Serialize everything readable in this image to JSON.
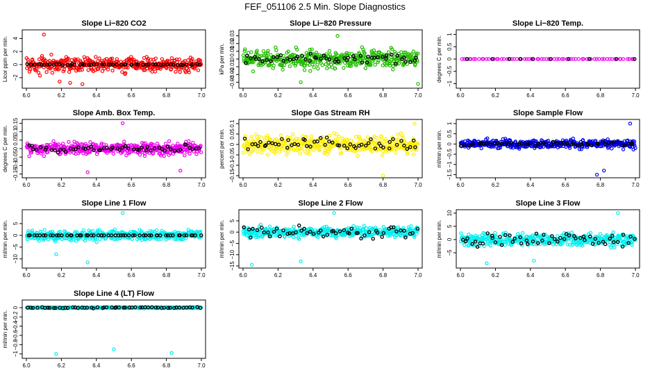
{
  "figure_title": "FEF_051106  2.5 Min. Slope Diagnostics",
  "chart_data": [
    {
      "id": "co2",
      "type": "scatter",
      "title": "Slope Li−820 CO2",
      "ylabel": "Licor ppm per min.",
      "xlim": [
        6.0,
        7.0
      ],
      "ylim": [
        -3.3,
        5.0
      ],
      "yticks": [
        -2,
        0,
        2,
        4
      ],
      "xticks": [
        6.0,
        6.2,
        6.4,
        6.6,
        6.8,
        7.0
      ],
      "color": "#ff0000",
      "spread": 1.1,
      "overlay_spread": 0.08,
      "outliers": [
        [
          6.1,
          4.6
        ],
        [
          6.32,
          -3.0
        ],
        [
          6.19,
          -2.6
        ],
        [
          6.25,
          -2.8
        ]
      ],
      "series": [
        {
          "name": "slope",
          "color": "#ff0000"
        },
        {
          "name": "reference",
          "color": "#000000"
        }
      ]
    },
    {
      "id": "pressure",
      "type": "scatter",
      "title": "Slope Li−820 Pressure",
      "ylabel": "kPa per min.",
      "xlim": [
        6.0,
        7.0
      ],
      "ylim": [
        -0.035,
        0.035
      ],
      "yticks": [
        -0.03,
        -0.02,
        -0.01,
        0.0,
        0.01,
        0.02,
        0.03
      ],
      "xticks": [
        6.0,
        6.2,
        6.4,
        6.6,
        6.8,
        7.0
      ],
      "color": "#22bb00",
      "spread": 0.011,
      "overlay_spread": 0.007,
      "outliers": [
        [
          6.54,
          0.03
        ],
        [
          6.33,
          -0.03
        ],
        [
          7.0,
          -0.032
        ]
      ],
      "series": [
        {
          "name": "slope",
          "color": "#22bb00"
        },
        {
          "name": "reference",
          "color": "#000000"
        }
      ]
    },
    {
      "id": "temp",
      "type": "scatter",
      "title": "Slope Li−820 Temp.",
      "ylabel": "degrees C per min.",
      "xlim": [
        6.0,
        7.0
      ],
      "ylim": [
        -1.1,
        1.1
      ],
      "yticks": [
        -1.0,
        -0.5,
        0.0,
        0.5,
        1.0
      ],
      "xticks": [
        6.0,
        6.2,
        6.4,
        6.6,
        6.8,
        7.0
      ],
      "color": "#ee00ee",
      "spread": 0.0,
      "overlay_spread": 0.0,
      "outliers": [],
      "series": [
        {
          "name": "slope",
          "color": "#ee00ee"
        },
        {
          "name": "reference",
          "color": "#000000"
        }
      ]
    },
    {
      "id": "box",
      "type": "scatter",
      "title": "Slope Amb. Box Temp.",
      "ylabel": "degrees C per min.",
      "xlim": [
        6.0,
        7.0
      ],
      "ylim": [
        -0.16,
        0.16
      ],
      "yticks": [
        -0.15,
        -0.1,
        -0.05,
        0.0,
        0.05,
        0.1,
        0.15
      ],
      "xticks": [
        6.0,
        6.2,
        6.4,
        6.6,
        6.8,
        7.0
      ],
      "color": "#ee00ee",
      "spread": 0.035,
      "overlay_spread": 0.02,
      "outliers": [
        [
          6.55,
          0.15
        ],
        [
          6.35,
          -0.14
        ],
        [
          6.88,
          -0.13
        ]
      ],
      "series": [
        {
          "name": "slope",
          "color": "#ee00ee"
        },
        {
          "name": "reference",
          "color": "#000000"
        }
      ]
    },
    {
      "id": "rh",
      "type": "scatter",
      "title": "Slope Gas Stream RH",
      "ylabel": "percent per min.",
      "xlim": [
        6.0,
        7.0
      ],
      "ylim": [
        -0.15,
        0.11
      ],
      "yticks": [
        -0.15,
        -0.1,
        -0.05,
        0.0,
        0.05,
        0.1
      ],
      "xticks": [
        6.0,
        6.2,
        6.4,
        6.6,
        6.8,
        7.0
      ],
      "color": "#ffee00",
      "spread": 0.04,
      "overlay_spread": 0.03,
      "outliers": [
        [
          6.8,
          -0.15
        ],
        [
          6.98,
          0.1
        ]
      ],
      "series": [
        {
          "name": "slope",
          "color": "#ffee00"
        },
        {
          "name": "reference",
          "color": "#000000"
        }
      ]
    },
    {
      "id": "flow",
      "type": "scatter",
      "title": "Slope Sample Flow",
      "ylabel": "ml/min per min.",
      "xlim": [
        6.0,
        7.0
      ],
      "ylim": [
        -1.55,
        1.1
      ],
      "yticks": [
        -1.5,
        -1.0,
        -0.5,
        0.0,
        0.5,
        1.0
      ],
      "xticks": [
        6.0,
        6.2,
        6.4,
        6.6,
        6.8,
        7.0
      ],
      "color": "#0000ee",
      "spread": 0.2,
      "overlay_spread": 0.1,
      "outliers": [
        [
          6.78,
          -1.5
        ],
        [
          6.82,
          -1.3
        ],
        [
          6.97,
          1.0
        ]
      ],
      "series": [
        {
          "name": "slope",
          "color": "#0000ee"
        },
        {
          "name": "reference",
          "color": "#000000"
        }
      ]
    },
    {
      "id": "line1",
      "type": "scatter",
      "title": "Slope Line 1 Flow",
      "ylabel": "ml/min per min.",
      "xlim": [
        6.0,
        7.0
      ],
      "ylim": [
        -13,
        10
      ],
      "yticks": [
        -10,
        -5,
        0,
        5
      ],
      "xticks": [
        6.0,
        6.2,
        6.4,
        6.6,
        6.8,
        7.0
      ],
      "color": "#00eeee",
      "spread": 2.0,
      "overlay_spread": 0.0,
      "outliers": [
        [
          6.55,
          9.5
        ],
        [
          6.35,
          -11.5
        ],
        [
          6.17,
          -8.0
        ]
      ],
      "series": [
        {
          "name": "slope",
          "color": "#00eeee"
        },
        {
          "name": "reference",
          "color": "#000000"
        }
      ]
    },
    {
      "id": "line2",
      "type": "scatter",
      "title": "Slope Line 2 Flow",
      "ylabel": "ml/min per min.",
      "xlim": [
        6.0,
        7.0
      ],
      "ylim": [
        -15,
        9
      ],
      "yticks": [
        -15,
        -10,
        -5,
        0,
        5
      ],
      "xticks": [
        6.0,
        6.2,
        6.4,
        6.6,
        6.8,
        7.0
      ],
      "color": "#00eeee",
      "spread": 2.2,
      "overlay_spread": 2.5,
      "outliers": [
        [
          6.52,
          8.5
        ],
        [
          6.05,
          -14.5
        ],
        [
          6.33,
          -13.0
        ]
      ],
      "series": [
        {
          "name": "slope",
          "color": "#00eeee"
        },
        {
          "name": "reference",
          "color": "#000000"
        }
      ]
    },
    {
      "id": "line3",
      "type": "scatter",
      "title": "Slope Line 3 Flow",
      "ylabel": "ml/min per min.",
      "xlim": [
        6.0,
        7.0
      ],
      "ylim": [
        -10,
        10.5
      ],
      "yticks": [
        -5,
        0,
        5,
        10
      ],
      "xticks": [
        6.0,
        6.2,
        6.4,
        6.6,
        6.8,
        7.0
      ],
      "color": "#00eeee",
      "spread": 2.3,
      "overlay_spread": 2.5,
      "outliers": [
        [
          6.9,
          10.0
        ],
        [
          6.15,
          -9.0
        ],
        [
          6.42,
          -8.0
        ]
      ],
      "series": [
        {
          "name": "slope",
          "color": "#00eeee"
        },
        {
          "name": "reference",
          "color": "#000000"
        }
      ]
    },
    {
      "id": "line4",
      "type": "scatter",
      "title": "Slope Line 4 (LT) Flow",
      "ylabel": "ml/min per min.",
      "xlim": [
        6.0,
        7.0
      ],
      "ylim": [
        -1.05,
        0.12
      ],
      "yticks": [
        -1.0,
        -0.8,
        -0.6,
        -0.4,
        -0.2,
        0.0
      ],
      "xticks": [
        6.0,
        6.2,
        6.4,
        6.6,
        6.8,
        7.0
      ],
      "color": "#00eeee",
      "spread": 0.012,
      "overlay_spread": 0.012,
      "outliers": [
        [
          6.17,
          -1.0
        ],
        [
          6.83,
          -0.98
        ],
        [
          6.5,
          -0.9
        ]
      ],
      "series": [
        {
          "name": "slope",
          "color": "#00eeee"
        },
        {
          "name": "reference",
          "color": "#000000"
        }
      ]
    }
  ]
}
